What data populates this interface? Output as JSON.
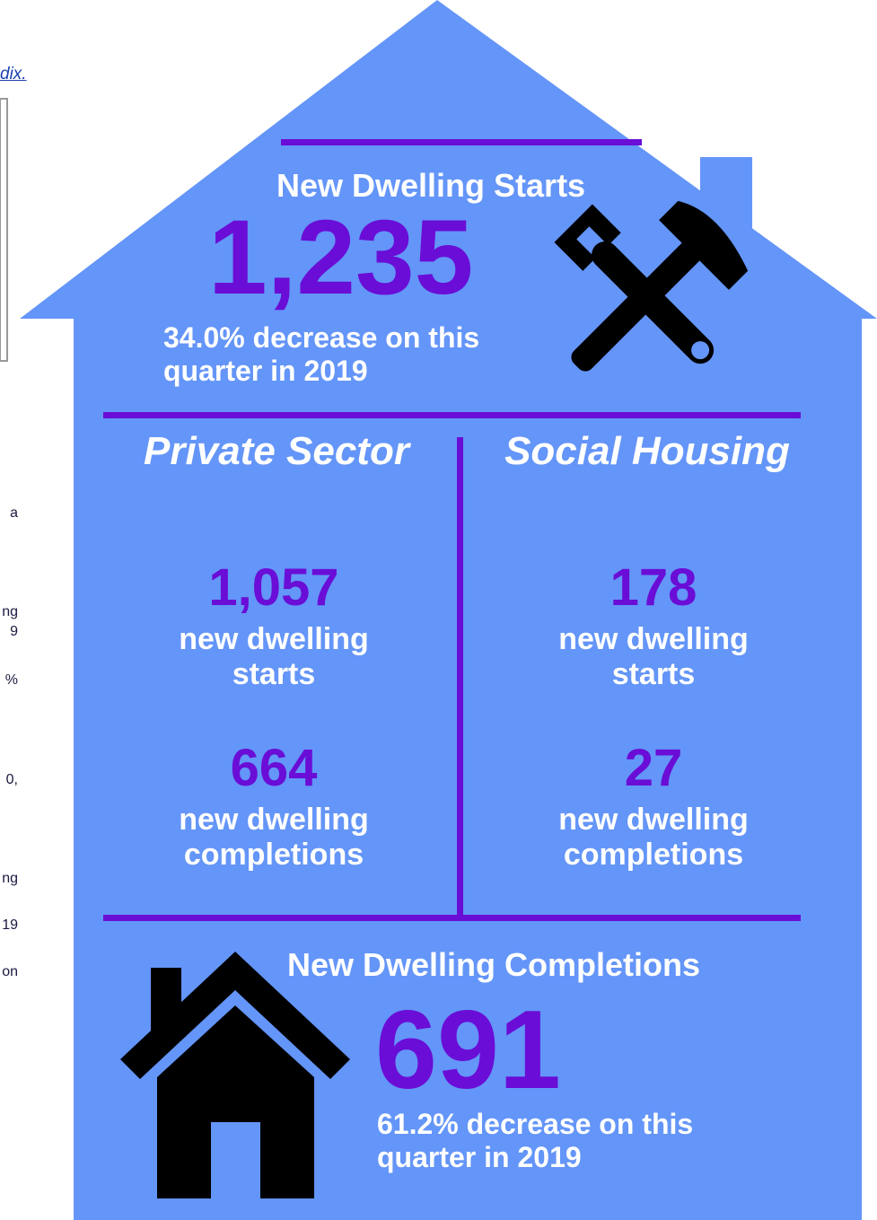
{
  "side_text": {
    "link": "dix.",
    "fragments": [
      "a",
      "ng",
      "9",
      "%",
      "0,",
      "ng",
      "19",
      "on"
    ]
  },
  "starts": {
    "title": "New Dwelling Starts",
    "total": "1,235",
    "change": "34.0% decrease on this quarter in 2019"
  },
  "sectors": [
    {
      "heading": "Private Sector",
      "starts": "1,057",
      "starts_label": "new dwelling starts",
      "completions": "664",
      "completions_label": "new dwelling completions"
    },
    {
      "heading": "Social Housing",
      "starts": "178",
      "starts_label": "new dwelling starts",
      "completions": "27",
      "completions_label": "new dwelling completions"
    }
  ],
  "completions": {
    "title": "New Dwelling Completions",
    "total": "691",
    "change": "61.2% decrease on this quarter in 2019"
  }
}
